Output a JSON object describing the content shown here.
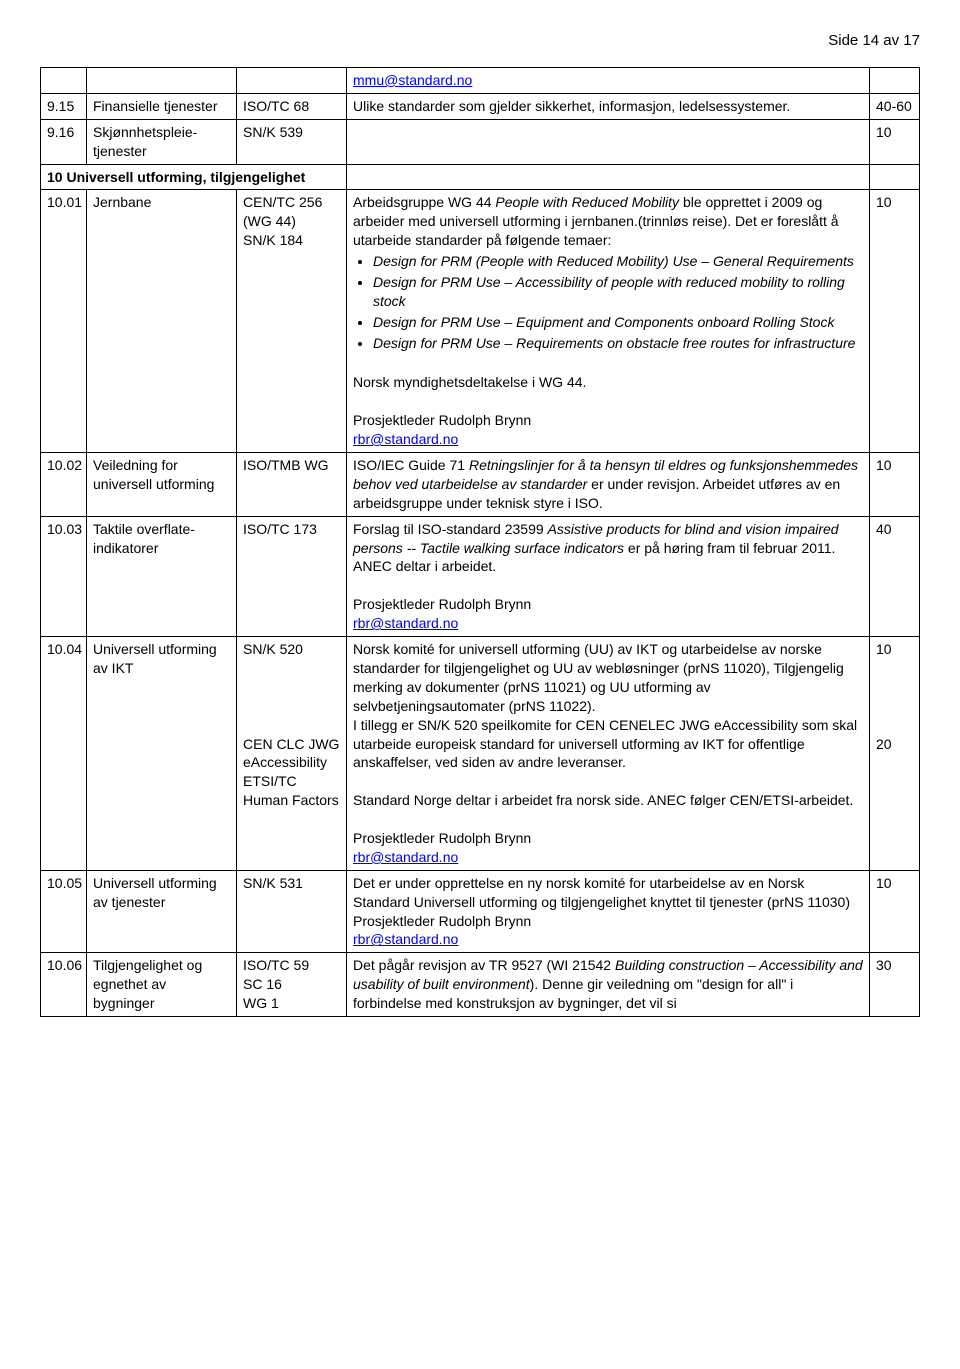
{
  "page_header": "Side 14 av 17",
  "colors": {
    "link": "#0000ee",
    "text": "#000000",
    "bg": "#ffffff",
    "border": "#000000"
  },
  "rows": [
    {
      "id": "",
      "name": "",
      "ref": "",
      "desc_link_pre": "",
      "desc_link": "mmu@standard.no",
      "num": ""
    },
    {
      "id": "9.15",
      "name": "Finansielle tjenester",
      "ref": "ISO/TC 68",
      "desc": "Ulike standarder som gjelder sikkerhet, informasjon, ledelsessystemer.",
      "num": "40-60"
    },
    {
      "id": "9.16",
      "name": "Skjønnhetspleie-tjenester",
      "ref": "SN/K 539",
      "desc": "",
      "num": "10"
    }
  ],
  "section10": {
    "id": "",
    "title_colspan": "10 Universell utforming, tilgjengelighet"
  },
  "r1001": {
    "id": "10.01",
    "name": "Jernbane",
    "ref_line1": "CEN/TC 256",
    "ref_line2": "(WG 44)",
    "ref_line3": "SN/K 184",
    "desc_intro_1": "Arbeidsgruppe WG 44 ",
    "desc_intro_italic": "People with Reduced Mobility",
    "desc_intro_2": " ble opprettet i 2009 og arbeider med universell utforming i jernbanen.(trinnløs reise). Det er foreslått å utarbeide standarder på følgende temaer:",
    "bullets": [
      "Design for PRM (People with Reduced Mobility) Use – General Requirements",
      "Design for PRM Use – Accessibility of people with reduced mobility to rolling stock",
      "Design for PRM Use – Equipment and Components onboard Rolling Stock",
      "Design for PRM Use – Requirements on obstacle free routes for infrastructure"
    ],
    "mid": "Norsk myndighetsdeltakelse i WG 44.",
    "leader": "Prosjektleder Rudolph Brynn",
    "leader_link": "rbr@standard.no",
    "num": "10"
  },
  "r1002": {
    "id": "10.02",
    "name": "Veiledning for universell utforming",
    "ref": "ISO/TMB WG",
    "desc_1": "ISO/IEC Guide 71 ",
    "desc_italic": "Retningslinjer for å ta hensyn til eldres og funksjonshemmedes behov ved utarbeidelse av standarder",
    "desc_2": " er under revisjon. Arbeidet utføres av en arbeidsgruppe under teknisk styre i ISO.",
    "num": "10"
  },
  "r1003": {
    "id": "10.03",
    "name": "Taktile overflate-indikatorer",
    "ref": "ISO/TC 173",
    "desc_1": "Forslag til ISO-standard 23599 ",
    "desc_italic": "Assistive products for blind and vision impaired persons -- Tactile walking surface indicators",
    "desc_2": " er på høring fram til februar 2011. ANEC deltar i arbeidet.",
    "leader": "Prosjektleder Rudolph Brynn",
    "leader_link": "rbr@standard.no",
    "num": "40"
  },
  "r1004": {
    "id": "10.04",
    "name": "Universell utforming av IKT",
    "ref_lines": [
      "SN/K 520",
      "",
      "",
      "",
      "",
      "CEN CLC JWG eAccessibility",
      "ETSI/TC Human Factors"
    ],
    "desc_p1": "Norsk komité for universell utforming (UU) av IKT og utarbeidelse av norske standarder for tilgjengelighet og UU av webløsninger (prNS 11020), Tilgjengelig merking av dokumenter (prNS 11021) og UU utforming av selvbetjeningsautomater (prNS 11022).",
    "desc_p2": "I tillegg er SN/K 520 speilkomite for CEN CENELEC JWG eAccessibility som skal utarbeide europeisk standard for universell utforming av IKT for offentlige anskaffelser, ved siden av andre leveranser.",
    "desc_p3": "Standard Norge deltar i arbeidet fra norsk side. ANEC følger CEN/ETSI-arbeidet.",
    "leader": "Prosjektleder Rudolph Brynn",
    "leader_link": "rbr@standard.no",
    "num1": "10",
    "num2": "20"
  },
  "r1005": {
    "id": "10.05",
    "name": "Universell utforming av tjenester",
    "ref": "SN/K 531",
    "desc": "Det er under opprettelse en ny norsk komité for utarbeidelse av en Norsk Standard Universell utforming og tilgjengelighet knyttet til tjenester (prNS 11030)",
    "leader": "Prosjektleder Rudolph Brynn",
    "leader_link": "rbr@standard.no",
    "num": "10"
  },
  "r1006": {
    "id": "10.06",
    "name": "Tilgjengelighet og egnethet av bygninger",
    "ref_lines": [
      "ISO/TC 59",
      "SC 16",
      "WG 1"
    ],
    "desc_1": "Det pågår revisjon av TR 9527 (WI 21542 ",
    "desc_italic": "Building construction – Accessibility and usability of built environment",
    "desc_2": "). Denne gir veiledning om \"design for all\" i forbindelse med konstruksjon av bygninger, det vil si",
    "num": "30"
  }
}
